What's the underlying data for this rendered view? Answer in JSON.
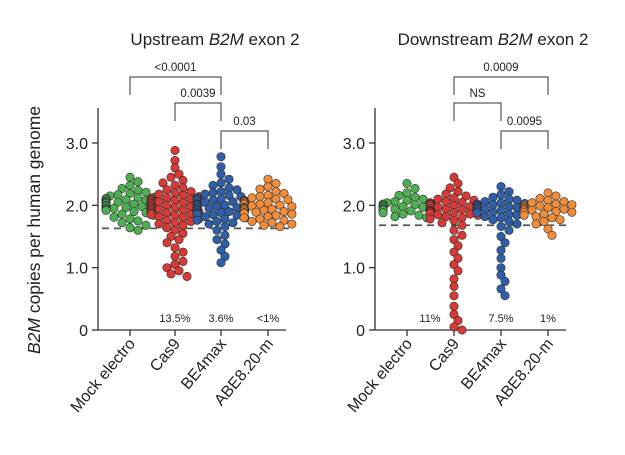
{
  "y_axis_label": {
    "italic": "B2M",
    "rest": " copies per human genome"
  },
  "colors": {
    "Mock electro": "#4caf50",
    "Cas9": "#d83a35",
    "BE4max": "#2f5fa8",
    "ABE8.20-m": "#f08c3a"
  },
  "chart_data": [
    {
      "type": "scatter",
      "title_italic": "B2M",
      "title_pre": "Upstream ",
      "title_post": " exon 2",
      "categories": [
        "Mock electro",
        "Cas9",
        "BE4max",
        "ABE8.20-m"
      ],
      "ylim": [
        0,
        3.5
      ],
      "yticks": [
        "0",
        "1.0",
        "2.0",
        "3.0"
      ],
      "threshold": 1.63,
      "percent_labels": [
        "",
        "13.5%",
        "3.6%",
        "<1%"
      ],
      "series": [
        {
          "category": "Mock electro",
          "values": [
            2.45,
            2.38,
            2.32,
            2.27,
            2.24,
            2.21,
            2.19,
            2.17,
            2.15,
            2.13,
            2.12,
            2.11,
            2.1,
            2.09,
            2.08,
            2.07,
            2.06,
            2.05,
            2.04,
            2.03,
            2.02,
            2.01,
            2.0,
            1.99,
            1.98,
            1.97,
            1.96,
            1.95,
            1.94,
            1.93,
            1.92,
            1.9,
            1.88,
            1.86,
            1.84,
            1.81,
            1.78,
            1.75,
            1.72,
            1.68,
            1.64,
            1.6
          ]
        },
        {
          "category": "Cas9",
          "values": [
            2.88,
            2.72,
            2.6,
            2.5,
            2.45,
            2.4,
            2.36,
            2.32,
            2.28,
            2.25,
            2.22,
            2.2,
            2.18,
            2.16,
            2.14,
            2.12,
            2.11,
            2.1,
            2.09,
            2.08,
            2.07,
            2.06,
            2.05,
            2.04,
            2.03,
            2.02,
            2.01,
            2.0,
            1.99,
            1.98,
            1.97,
            1.96,
            1.95,
            1.94,
            1.93,
            1.92,
            1.91,
            1.9,
            1.89,
            1.88,
            1.87,
            1.86,
            1.85,
            1.84,
            1.82,
            1.8,
            1.78,
            1.76,
            1.74,
            1.72,
            1.7,
            1.68,
            1.64,
            1.6,
            1.55,
            1.5,
            1.45,
            1.4,
            1.32,
            1.25,
            1.18,
            1.1,
            1.05,
            1.0,
            0.95,
            0.9,
            0.86
          ]
        },
        {
          "category": "BE4max",
          "values": [
            2.78,
            2.62,
            2.5,
            2.42,
            2.36,
            2.32,
            2.28,
            2.25,
            2.22,
            2.2,
            2.18,
            2.16,
            2.14,
            2.12,
            2.11,
            2.1,
            2.09,
            2.08,
            2.07,
            2.06,
            2.05,
            2.04,
            2.03,
            2.02,
            2.01,
            2.0,
            1.99,
            1.98,
            1.97,
            1.96,
            1.95,
            1.94,
            1.93,
            1.92,
            1.91,
            1.9,
            1.89,
            1.88,
            1.87,
            1.86,
            1.85,
            1.84,
            1.82,
            1.8,
            1.78,
            1.76,
            1.74,
            1.72,
            1.7,
            1.66,
            1.6,
            1.52,
            1.45,
            1.38,
            1.28,
            1.18,
            1.08
          ]
        },
        {
          "category": "ABE8.20-m",
          "values": [
            2.42,
            2.35,
            2.3,
            2.26,
            2.22,
            2.19,
            2.16,
            2.14,
            2.12,
            2.1,
            2.09,
            2.08,
            2.07,
            2.06,
            2.05,
            2.04,
            2.03,
            2.02,
            2.01,
            2.0,
            1.99,
            1.98,
            1.97,
            1.96,
            1.95,
            1.94,
            1.93,
            1.92,
            1.91,
            1.9,
            1.89,
            1.88,
            1.87,
            1.86,
            1.84,
            1.82,
            1.8,
            1.78,
            1.76,
            1.74,
            1.72,
            1.7,
            1.68,
            1.66
          ]
        }
      ],
      "comparisons": [
        {
          "a": 0,
          "b": 2,
          "label": "<0.0001",
          "level": 3
        },
        {
          "a": 1,
          "b": 2,
          "label": "0.0039",
          "level": 2
        },
        {
          "a": 2,
          "b": 3,
          "label": "0.03",
          "level": 1
        }
      ]
    },
    {
      "type": "scatter",
      "title_italic": "B2M",
      "title_pre": "Downstream ",
      "title_post": " exon 2",
      "categories": [
        "Mock electro",
        "Cas9",
        "BE4max",
        "ABE8.20-m"
      ],
      "ylim": [
        0,
        3.5
      ],
      "yticks": [
        "0",
        "1.0",
        "2.0",
        "3.0"
      ],
      "threshold": 1.68,
      "percent_labels": [
        "11%",
        "",
        "7.5%",
        "1%"
      ],
      "series": [
        {
          "category": "Mock electro",
          "values": [
            2.35,
            2.27,
            2.2,
            2.16,
            2.13,
            2.1,
            2.08,
            2.06,
            2.04,
            2.03,
            2.02,
            2.01,
            2.0,
            1.99,
            1.98,
            1.97,
            1.96,
            1.95,
            1.94,
            1.93,
            1.92,
            1.91,
            1.9,
            1.88,
            1.86,
            1.84,
            1.82,
            1.8
          ]
        },
        {
          "category": "Cas9",
          "values": [
            2.45,
            2.35,
            2.28,
            2.22,
            2.18,
            2.15,
            2.12,
            2.1,
            2.08,
            2.06,
            2.05,
            2.04,
            2.03,
            2.02,
            2.01,
            2.0,
            1.99,
            1.98,
            1.97,
            1.96,
            1.95,
            1.94,
            1.93,
            1.92,
            1.91,
            1.9,
            1.89,
            1.88,
            1.87,
            1.86,
            1.85,
            1.84,
            1.82,
            1.8,
            1.78,
            1.76,
            1.72,
            1.68,
            1.6,
            1.52,
            1.45,
            1.35,
            1.25,
            1.15,
            1.05,
            0.95,
            0.82,
            0.7,
            0.55,
            0.38,
            0.25,
            0.15,
            0.05,
            0.0
          ]
        },
        {
          "category": "BE4max",
          "values": [
            2.3,
            2.22,
            2.17,
            2.13,
            2.1,
            2.08,
            2.06,
            2.04,
            2.03,
            2.02,
            2.01,
            2.0,
            1.99,
            1.98,
            1.97,
            1.96,
            1.95,
            1.94,
            1.93,
            1.92,
            1.91,
            1.9,
            1.89,
            1.88,
            1.86,
            1.84,
            1.82,
            1.8,
            1.77,
            1.74,
            1.7,
            1.66,
            1.6,
            1.5,
            1.4,
            1.28,
            1.15,
            1.0,
            0.88,
            0.78,
            0.66,
            0.55
          ]
        },
        {
          "category": "ABE8.20-m",
          "values": [
            2.2,
            2.15,
            2.11,
            2.08,
            2.06,
            2.04,
            2.02,
            2.01,
            2.0,
            1.99,
            1.98,
            1.97,
            1.96,
            1.95,
            1.94,
            1.93,
            1.92,
            1.91,
            1.9,
            1.89,
            1.88,
            1.86,
            1.84,
            1.82,
            1.8,
            1.77,
            1.74,
            1.7,
            1.62,
            1.52
          ]
        }
      ],
      "comparisons": [
        {
          "a": 1,
          "b": 3,
          "label": "0.0009",
          "level": 3
        },
        {
          "a": 1,
          "b": 2,
          "label": "NS",
          "level": 2
        },
        {
          "a": 2,
          "b": 3,
          "label": "0.0095",
          "level": 1
        }
      ]
    }
  ]
}
